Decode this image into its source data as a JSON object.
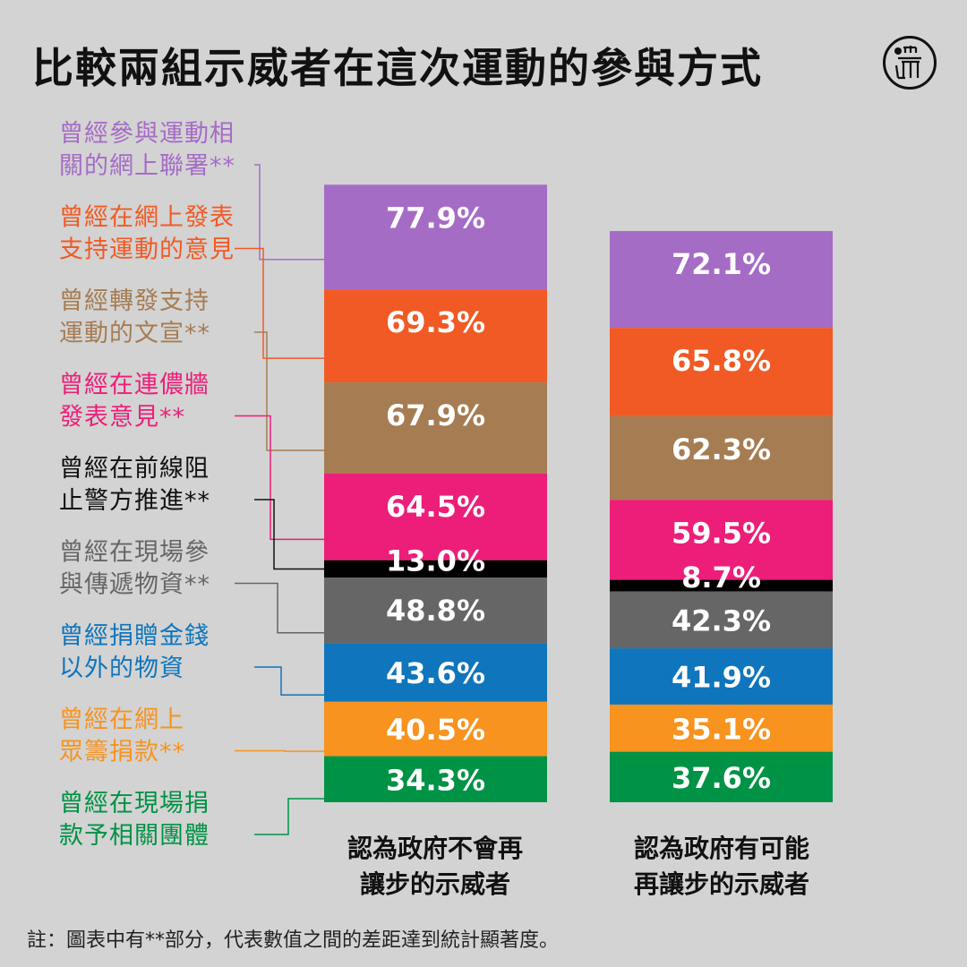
{
  "title": "比較兩組示威者在這次運動的參與方式",
  "logo": {
    "icon": "initium-logo-icon",
    "text": "端"
  },
  "note": "註：圖表中有**部分，代表數值之間的差距達到統計顯著度。",
  "chart_data": {
    "type": "stacked-bar",
    "categories": [
      {
        "lines": [
          "曾經參與運動相",
          "關的網上聯署**"
        ],
        "color": "#a56cc6"
      },
      {
        "lines": [
          "曾經在網上發表",
          "支持運動的意見"
        ],
        "color": "#f15a24"
      },
      {
        "lines": [
          "曾經轉發支持",
          "運動的文宣**"
        ],
        "color": "#a67c52"
      },
      {
        "lines": [
          "曾經在連儂牆",
          "發表意見**"
        ],
        "color": "#ed1e79"
      },
      {
        "lines": [
          "曾經在前線阻",
          "止警方推進**"
        ],
        "color": "#000000"
      },
      {
        "lines": [
          "曾經在現場參",
          "與傳遞物資**"
        ],
        "color": "#666666"
      },
      {
        "lines": [
          "曾經捐贈金錢",
          "以外的物資"
        ],
        "color": "#0f75bc"
      },
      {
        "lines": [
          "曾經在網上",
          "眾籌捐款**"
        ],
        "color": "#f7931e"
      },
      {
        "lines": [
          "曾經在現場捐",
          "款予相關團體"
        ],
        "color": "#009245"
      }
    ],
    "series": [
      {
        "name_lines": [
          "認為政府不會再",
          "讓步的示威者"
        ],
        "values": [
          77.9,
          69.3,
          67.9,
          64.5,
          13.0,
          48.8,
          43.6,
          40.5,
          34.3
        ],
        "labels": [
          "77.9%",
          "69.3%",
          "67.9%",
          "64.5%",
          "13.0%",
          "48.8%",
          "43.6%",
          "40.5%",
          "34.3%"
        ]
      },
      {
        "name_lines": [
          "認為政府有可能",
          "再讓步的示威者"
        ],
        "values": [
          72.1,
          65.8,
          62.3,
          59.5,
          8.7,
          42.3,
          41.9,
          35.1,
          37.6
        ],
        "labels": [
          "72.1%",
          "65.8%",
          "62.3%",
          "59.5%",
          "8.7%",
          "42.3%",
          "41.9%",
          "35.1%",
          "37.6%"
        ]
      }
    ]
  }
}
